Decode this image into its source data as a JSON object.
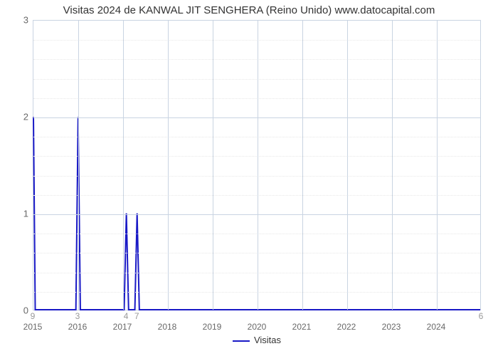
{
  "chart": {
    "type": "line",
    "title": "Visitas 2024 de KANWAL JIT SENGHERA (Reino Unido) www.datocapital.com",
    "title_fontsize": 15,
    "title_color": "#333333",
    "background_color": "#ffffff",
    "grid_color": "#c9d4e2",
    "minor_grid_color": "#e8e8e8",
    "line_color": "#1919c6",
    "line_width": 2,
    "x": {
      "min": 2015,
      "max": 2025,
      "ticks": [
        2015,
        2016,
        2017,
        2018,
        2019,
        2020,
        2021,
        2022,
        2023,
        2024
      ],
      "tick_fontsize": 12,
      "tick_color": "#686868"
    },
    "y": {
      "min": 0,
      "max": 3,
      "ticks": [
        0,
        1,
        2,
        3
      ],
      "minor_step": 0.2,
      "tick_fontsize": 13,
      "tick_color": "#686868"
    },
    "series": [
      {
        "name": "Visitas",
        "points": [
          [
            2015.0,
            2.0
          ],
          [
            2015.04,
            0.0
          ],
          [
            2015.95,
            0.0
          ],
          [
            2016.0,
            2.0
          ],
          [
            2016.05,
            0.0
          ],
          [
            2017.03,
            0.0
          ],
          [
            2017.08,
            1.0
          ],
          [
            2017.13,
            0.0
          ],
          [
            2017.27,
            0.0
          ],
          [
            2017.32,
            1.0
          ],
          [
            2017.37,
            0.0
          ],
          [
            2025.0,
            0.0
          ]
        ]
      }
    ],
    "below_axis_labels": [
      {
        "x": 2015.0,
        "text": "9"
      },
      {
        "x": 2016.0,
        "text": "3"
      },
      {
        "x": 2017.08,
        "text": "4"
      },
      {
        "x": 2017.32,
        "text": "7"
      },
      {
        "x": 2025.0,
        "text": "6"
      }
    ],
    "below_label_color": "#999999",
    "legend": {
      "label": "Visitas",
      "color": "#1919c6",
      "fontsize": 13
    }
  }
}
